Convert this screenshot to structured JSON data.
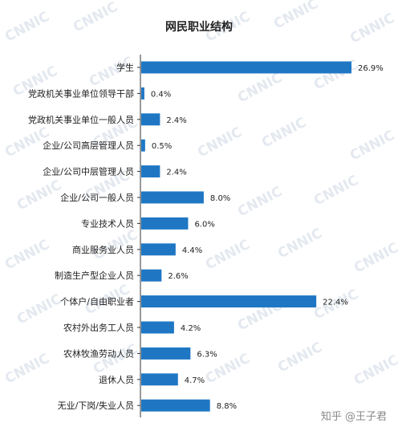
{
  "watermark": "CNNIC",
  "credit": "知乎 @王子君",
  "colors": {
    "bar": "#1f77c4",
    "axis": "#333333",
    "text": "#222222"
  },
  "chart_data": {
    "type": "bar",
    "orientation": "horizontal",
    "title": "网民职业结构",
    "categories": [
      "学生",
      "党政机关事业单位领导干部",
      "党政机关事业单位一般人员",
      "企业/公司高层管理人员",
      "企业/公司中层管理人员",
      "企业/公司一般人员",
      "专业技术人员",
      "商业服务业人员",
      "制造生产型企业人员",
      "个体户/自由职业者",
      "农村外出务工人员",
      "农林牧渔劳动人员",
      "退休人员",
      "无业/下岗/失业人员"
    ],
    "values": [
      26.9,
      0.4,
      2.4,
      0.5,
      2.4,
      8.0,
      6.0,
      4.4,
      2.6,
      22.4,
      4.2,
      6.3,
      4.7,
      8.8
    ],
    "value_labels": [
      "26.9%",
      "0.4%",
      "2.4%",
      "0.5%",
      "2.4%",
      "8.0%",
      "6.0%",
      "4.4%",
      "2.6%",
      "22.4%",
      "4.2%",
      "6.3%",
      "4.7%",
      "8.8%"
    ],
    "xlim": [
      0,
      27
    ],
    "grid": false,
    "legend": "none"
  }
}
